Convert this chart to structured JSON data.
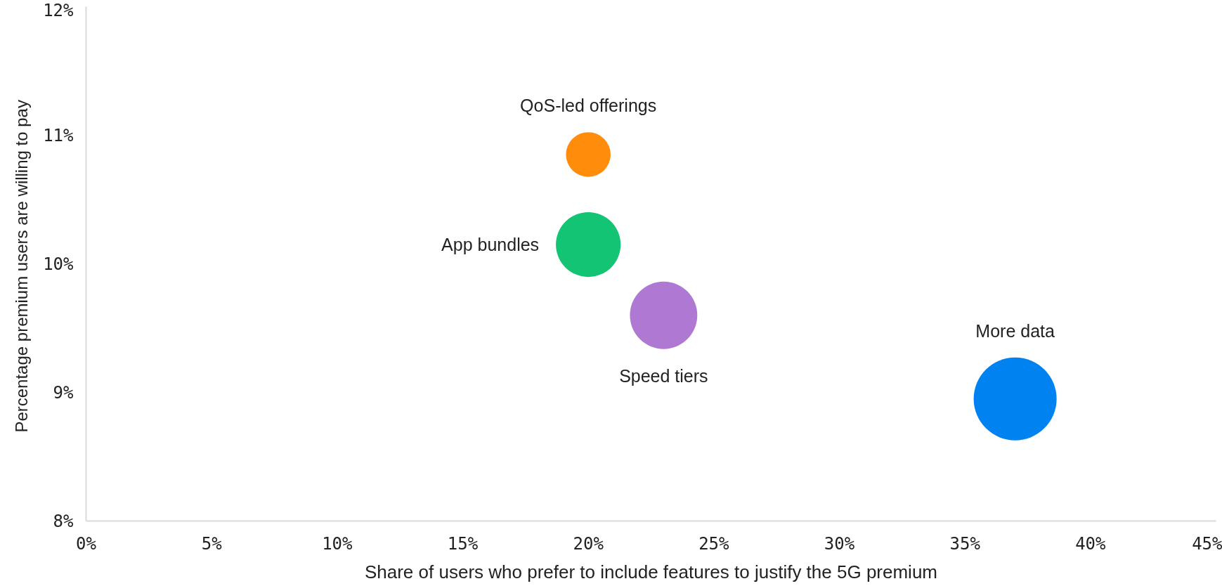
{
  "chart_data": {
    "type": "bubble",
    "xlabel": "Share of users who prefer to include features to justify the 5G premium",
    "ylabel": "Percentage premium users are  willing to pay",
    "xlim": [
      0,
      45
    ],
    "ylim": [
      8,
      12
    ],
    "xticks": [
      {
        "value": 0,
        "label": "0%"
      },
      {
        "value": 5,
        "label": "5%"
      },
      {
        "value": 10,
        "label": "10%"
      },
      {
        "value": 15,
        "label": "15%"
      },
      {
        "value": 20,
        "label": "20%"
      },
      {
        "value": 25,
        "label": "25%"
      },
      {
        "value": 30,
        "label": "30%"
      },
      {
        "value": 35,
        "label": "35%"
      },
      {
        "value": 40,
        "label": "40%"
      },
      {
        "value": 45,
        "label": "45%"
      }
    ],
    "yticks": [
      {
        "value": 8,
        "label": "8%"
      },
      {
        "value": 9,
        "label": "9%"
      },
      {
        "value": 10,
        "label": "10%"
      },
      {
        "value": 11,
        "label": "11%"
      },
      {
        "value": 12,
        "label": "12%"
      }
    ],
    "marker": "circle",
    "series": [
      {
        "name": "QoS-led offerings",
        "color": "#ff8c0a",
        "x": [
          20
        ],
        "values": [
          10.85
        ],
        "sizes": [
          0.29
        ]
      },
      {
        "name": "App bundles",
        "color": "#12c474",
        "x": [
          20
        ],
        "values": [
          10.15
        ],
        "sizes": [
          0.61
        ]
      },
      {
        "name": "Speed tiers",
        "color": "#af78d2",
        "x": [
          23
        ],
        "values": [
          9.6
        ],
        "sizes": [
          0.66
        ]
      },
      {
        "name": "More data",
        "color": "#0082f0",
        "x": [
          37
        ],
        "values": [
          8.95
        ],
        "sizes": [
          1
        ]
      }
    ]
  }
}
